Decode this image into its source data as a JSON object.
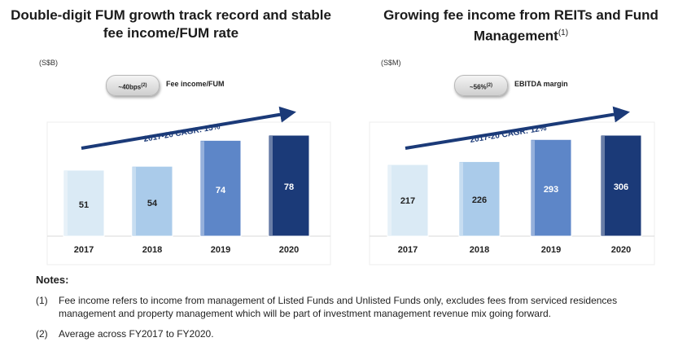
{
  "chart_data": [
    {
      "type": "bar",
      "title": "Double-digit FUM growth track record and stable fee income/FUM rate",
      "unit": "(S$B)",
      "badge": {
        "value": "~40bps",
        "footnote": "(2)",
        "label": "Fee income/FUM"
      },
      "cagr": "2017-20 CAGR: 15%",
      "categories": [
        "2017",
        "2018",
        "2019",
        "2020"
      ],
      "values": [
        51,
        54,
        74,
        78
      ],
      "ylim": [
        0,
        78
      ],
      "colors": [
        "#daeaf5",
        "#aacbea",
        "#5d86c8",
        "#1b3a78"
      ],
      "label_colors": [
        "#222222",
        "#222222",
        "#ffffff",
        "#ffffff"
      ]
    },
    {
      "type": "bar",
      "title": "Growing fee income from REITs and Fund Management",
      "title_footnote": "(1)",
      "unit": "(S$M)",
      "badge": {
        "value": "~56%",
        "footnote": "(2)",
        "label": "EBITDA margin"
      },
      "cagr": "2017-20 CAGR: 12%",
      "categories": [
        "2017",
        "2018",
        "2019",
        "2020"
      ],
      "values": [
        217,
        226,
        293,
        306
      ],
      "ylim": [
        0,
        306
      ],
      "colors": [
        "#daeaf5",
        "#aacbea",
        "#5d86c8",
        "#1b3a78"
      ],
      "label_colors": [
        "#222222",
        "#222222",
        "#ffffff",
        "#ffffff"
      ]
    }
  ],
  "notes": {
    "title": "Notes:",
    "items": [
      {
        "mark": "(1)",
        "text": "Fee income refers to income from management of Listed Funds and Unlisted Funds only, excludes fees from serviced residences management and property management which will be part of investment management revenue mix going forward."
      },
      {
        "mark": "(2)",
        "text": "Average across FY2017 to FY2020."
      }
    ]
  }
}
